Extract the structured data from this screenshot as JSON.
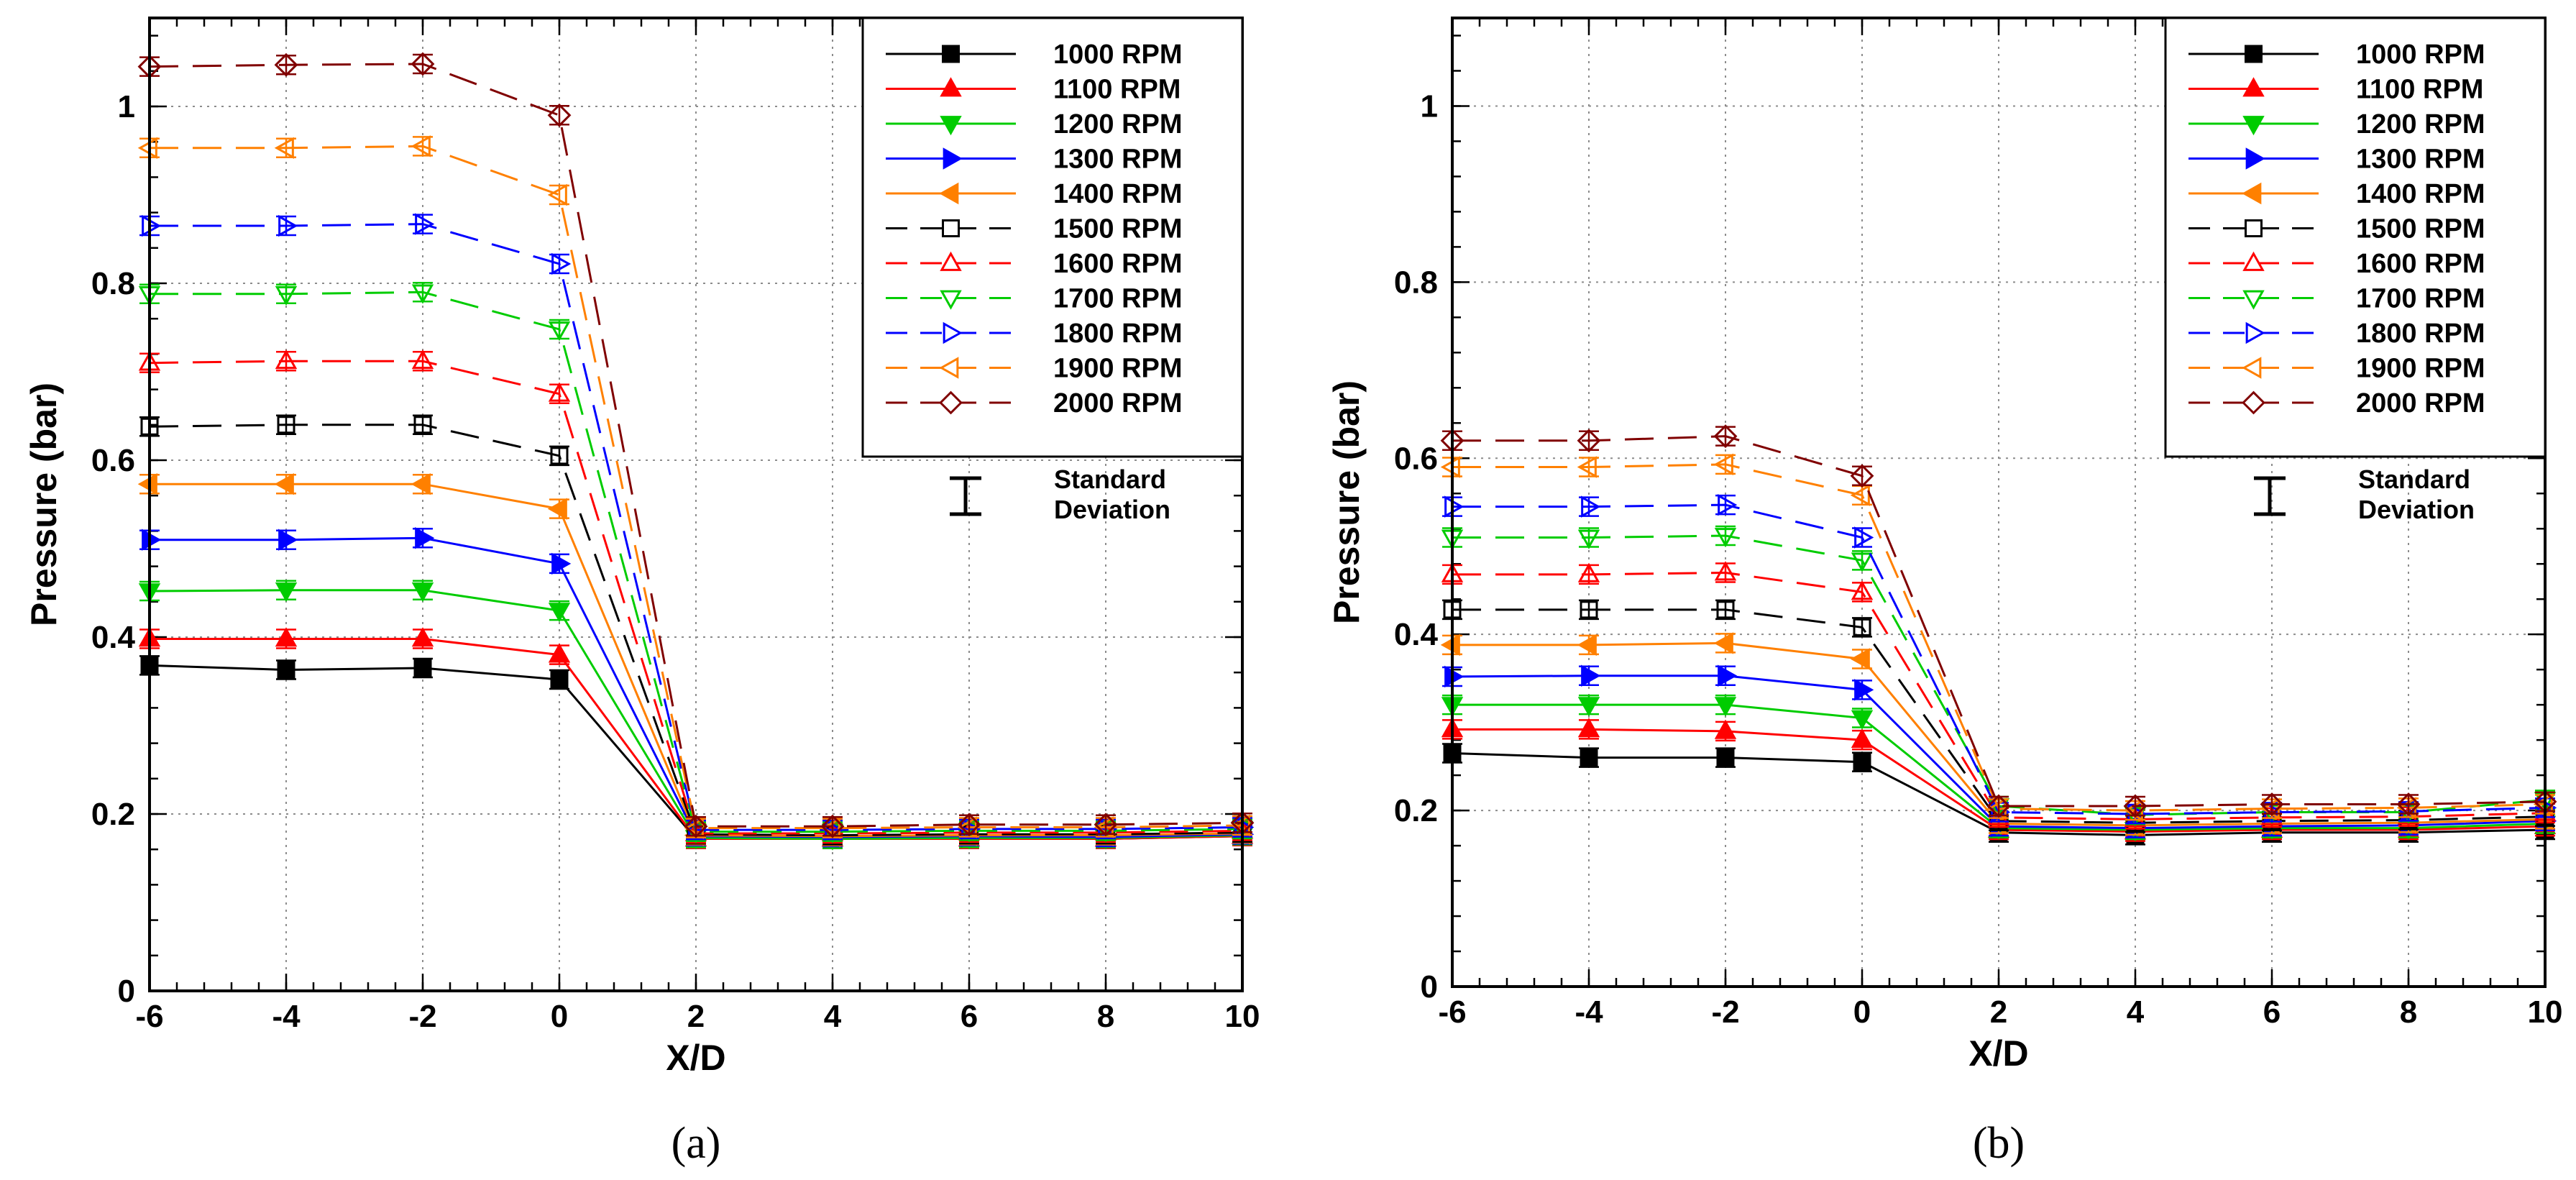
{
  "chart_data": [
    {
      "type": "line",
      "panel_label": "(a)",
      "xlabel": "X/D",
      "ylabel": "Pressure (bar)",
      "xlim": [
        -6,
        10
      ],
      "ylim": [
        0,
        1.1
      ],
      "x_ticks": [
        "-6",
        "-4",
        "-2",
        "0",
        "2",
        "4",
        "6",
        "8",
        "10"
      ],
      "y_ticks": [
        "0",
        "0.2",
        "0.4",
        "0.6",
        "0.8",
        "1"
      ],
      "grid": true,
      "legend_position": "top-right",
      "standard_deviation_label_1": "Standard",
      "standard_deviation_label_2": "Deviation",
      "x": [
        -6,
        -4,
        -2,
        0,
        2,
        4,
        6,
        8,
        10
      ],
      "series": [
        {
          "name": "1000 RPM",
          "color": "#000000",
          "marker": "square",
          "filled": true,
          "dashed": false,
          "values": [
            0.368,
            0.363,
            0.365,
            0.352,
            0.172,
            0.172,
            0.172,
            0.172,
            0.175
          ]
        },
        {
          "name": "1100 RPM",
          "color": "#ff0000",
          "marker": "triangle-up",
          "filled": true,
          "dashed": false,
          "values": [
            0.398,
            0.398,
            0.398,
            0.38,
            0.172,
            0.172,
            0.172,
            0.172,
            0.175
          ]
        },
        {
          "name": "1200 RPM",
          "color": "#00cc00",
          "marker": "triangle-down",
          "filled": true,
          "dashed": false,
          "values": [
            0.452,
            0.453,
            0.453,
            0.43,
            0.173,
            0.172,
            0.173,
            0.173,
            0.176
          ]
        },
        {
          "name": "1300 RPM",
          "color": "#0000ff",
          "marker": "triangle-right",
          "filled": true,
          "dashed": false,
          "values": [
            0.51,
            0.51,
            0.512,
            0.483,
            0.175,
            0.174,
            0.175,
            0.174,
            0.177
          ]
        },
        {
          "name": "1400 RPM",
          "color": "#ff8000",
          "marker": "triangle-left",
          "filled": true,
          "dashed": false,
          "values": [
            0.573,
            0.573,
            0.573,
            0.545,
            0.176,
            0.175,
            0.176,
            0.176,
            0.178
          ]
        },
        {
          "name": "1500 RPM",
          "color": "#000000",
          "marker": "square",
          "filled": false,
          "dashed": true,
          "values": [
            0.638,
            0.64,
            0.64,
            0.605,
            0.177,
            0.176,
            0.177,
            0.177,
            0.179
          ]
        },
        {
          "name": "1600 RPM",
          "color": "#ff0000",
          "marker": "triangle-up",
          "filled": false,
          "dashed": true,
          "values": [
            0.71,
            0.712,
            0.712,
            0.675,
            0.178,
            0.178,
            0.179,
            0.179,
            0.181
          ]
        },
        {
          "name": "1700 RPM",
          "color": "#00cc00",
          "marker": "triangle-down",
          "filled": false,
          "dashed": true,
          "values": [
            0.788,
            0.788,
            0.79,
            0.748,
            0.18,
            0.18,
            0.181,
            0.181,
            0.183
          ]
        },
        {
          "name": "1800 RPM",
          "color": "#0000ff",
          "marker": "triangle-right",
          "filled": false,
          "dashed": true,
          "values": [
            0.865,
            0.865,
            0.867,
            0.822,
            0.182,
            0.182,
            0.183,
            0.183,
            0.185
          ]
        },
        {
          "name": "1900 RPM",
          "color": "#ff8000",
          "marker": "triangle-left",
          "filled": false,
          "dashed": true,
          "values": [
            0.953,
            0.953,
            0.955,
            0.9,
            0.184,
            0.184,
            0.185,
            0.185,
            0.187
          ]
        },
        {
          "name": "2000 RPM",
          "color": "#800000",
          "marker": "diamond",
          "filled": false,
          "dashed": true,
          "values": [
            1.045,
            1.047,
            1.048,
            0.99,
            0.186,
            0.186,
            0.188,
            0.188,
            0.19
          ]
        }
      ]
    },
    {
      "type": "line",
      "panel_label": "(b)",
      "xlabel": "X/D",
      "ylabel": "Pressure (bar)",
      "xlim": [
        -6,
        10
      ],
      "ylim": [
        0,
        1.1
      ],
      "x_ticks": [
        "-6",
        "-4",
        "-2",
        "0",
        "2",
        "4",
        "6",
        "8",
        "10"
      ],
      "y_ticks": [
        "0",
        "0.2",
        "0.4",
        "0.6",
        "0.8",
        "1"
      ],
      "grid": true,
      "legend_position": "top-right",
      "standard_deviation_label_1": "Standard",
      "standard_deviation_label_2": "Deviation",
      "x": [
        -6,
        -4,
        -2,
        0,
        2,
        4,
        6,
        8,
        10
      ],
      "series": [
        {
          "name": "1000 RPM",
          "color": "#000000",
          "marker": "square",
          "filled": true,
          "dashed": false,
          "values": [
            0.265,
            0.26,
            0.26,
            0.255,
            0.175,
            0.172,
            0.175,
            0.175,
            0.178
          ]
        },
        {
          "name": "1100 RPM",
          "color": "#ff0000",
          "marker": "triangle-up",
          "filled": true,
          "dashed": false,
          "values": [
            0.292,
            0.292,
            0.29,
            0.28,
            0.178,
            0.176,
            0.178,
            0.178,
            0.182
          ]
        },
        {
          "name": "1200 RPM",
          "color": "#00cc00",
          "marker": "triangle-down",
          "filled": true,
          "dashed": false,
          "values": [
            0.32,
            0.32,
            0.32,
            0.305,
            0.18,
            0.178,
            0.18,
            0.18,
            0.185
          ]
        },
        {
          "name": "1300 RPM",
          "color": "#0000ff",
          "marker": "triangle-right",
          "filled": true,
          "dashed": false,
          "values": [
            0.352,
            0.353,
            0.353,
            0.337,
            0.182,
            0.18,
            0.182,
            0.183,
            0.188
          ]
        },
        {
          "name": "1400 RPM",
          "color": "#ff8000",
          "marker": "triangle-left",
          "filled": true,
          "dashed": false,
          "values": [
            0.388,
            0.388,
            0.39,
            0.372,
            0.185,
            0.183,
            0.185,
            0.186,
            0.19
          ]
        },
        {
          "name": "1500 RPM",
          "color": "#000000",
          "marker": "square",
          "filled": false,
          "dashed": true,
          "values": [
            0.428,
            0.428,
            0.428,
            0.408,
            0.188,
            0.186,
            0.188,
            0.189,
            0.193
          ]
        },
        {
          "name": "1600 RPM",
          "color": "#ff0000",
          "marker": "triangle-up",
          "filled": false,
          "dashed": true,
          "values": [
            0.468,
            0.468,
            0.47,
            0.448,
            0.192,
            0.19,
            0.192,
            0.193,
            0.197
          ]
        },
        {
          "name": "1700 RPM",
          "color": "#00cc00",
          "marker": "triangle-down",
          "filled": false,
          "dashed": true,
          "values": [
            0.51,
            0.51,
            0.512,
            0.484,
            0.205,
            0.195,
            0.198,
            0.198,
            0.212
          ]
        },
        {
          "name": "1800 RPM",
          "color": "#0000ff",
          "marker": "triangle-right",
          "filled": false,
          "dashed": true,
          "values": [
            0.545,
            0.545,
            0.547,
            0.51,
            0.198,
            0.196,
            0.198,
            0.199,
            0.203
          ]
        },
        {
          "name": "1900 RPM",
          "color": "#ff8000",
          "marker": "triangle-left",
          "filled": false,
          "dashed": true,
          "values": [
            0.59,
            0.59,
            0.593,
            0.558,
            0.202,
            0.2,
            0.202,
            0.203,
            0.207
          ]
        },
        {
          "name": "2000 RPM",
          "color": "#800000",
          "marker": "diamond",
          "filled": false,
          "dashed": true,
          "values": [
            0.62,
            0.62,
            0.625,
            0.58,
            0.205,
            0.205,
            0.207,
            0.207,
            0.21
          ]
        }
      ]
    }
  ]
}
